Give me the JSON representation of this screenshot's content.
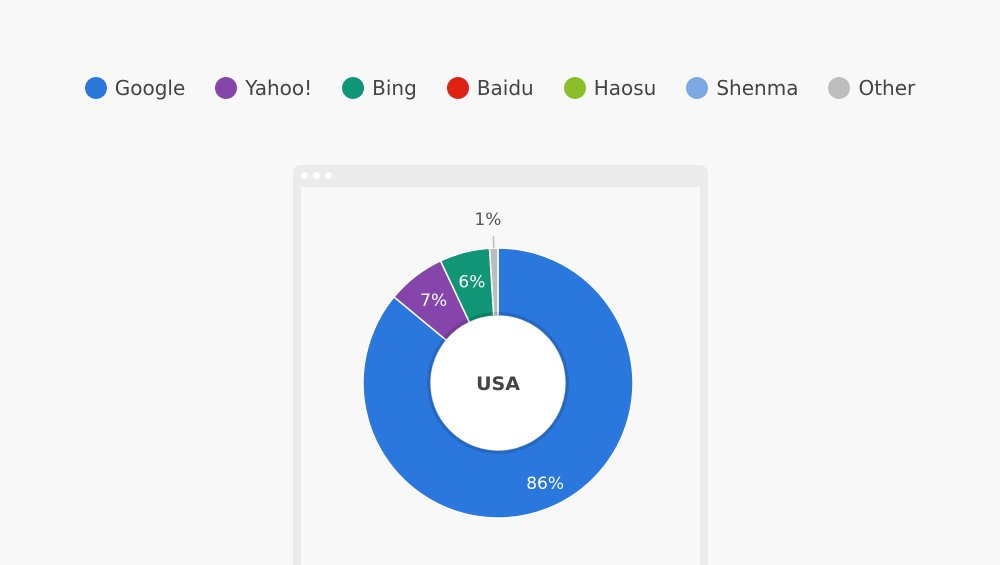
{
  "colors": {
    "Google": "#2a77de",
    "Yahoo!": "#8545aa",
    "Bing": "#109576",
    "Baidu": "#dd2214",
    "Haosu": "#8cbd2a",
    "Shenma": "#7ea8e3",
    "Other": "#bdbdbd"
  },
  "legend": [
    {
      "label": "Google",
      "color": "#2a77de"
    },
    {
      "label": "Yahoo!",
      "color": "#8545aa"
    },
    {
      "label": "Bing",
      "color": "#109576"
    },
    {
      "label": "Baidu",
      "color": "#dd2214"
    },
    {
      "label": "Haosu",
      "color": "#8cbd2a"
    },
    {
      "label": "Shenma",
      "color": "#7ea8e3"
    },
    {
      "label": "Other",
      "color": "#bdbdbd"
    }
  ],
  "chart_data": {
    "type": "pie",
    "center_label": "USA",
    "categories": [
      "Google",
      "Yahoo!",
      "Bing",
      "Other"
    ],
    "values": [
      86,
      7,
      6,
      1
    ],
    "labels": [
      "86%",
      "7%",
      "6%",
      "1%"
    ],
    "colors": [
      "#2a77de",
      "#8545aa",
      "#109576",
      "#bdbdbd"
    ],
    "title": "",
    "legend": "top"
  }
}
